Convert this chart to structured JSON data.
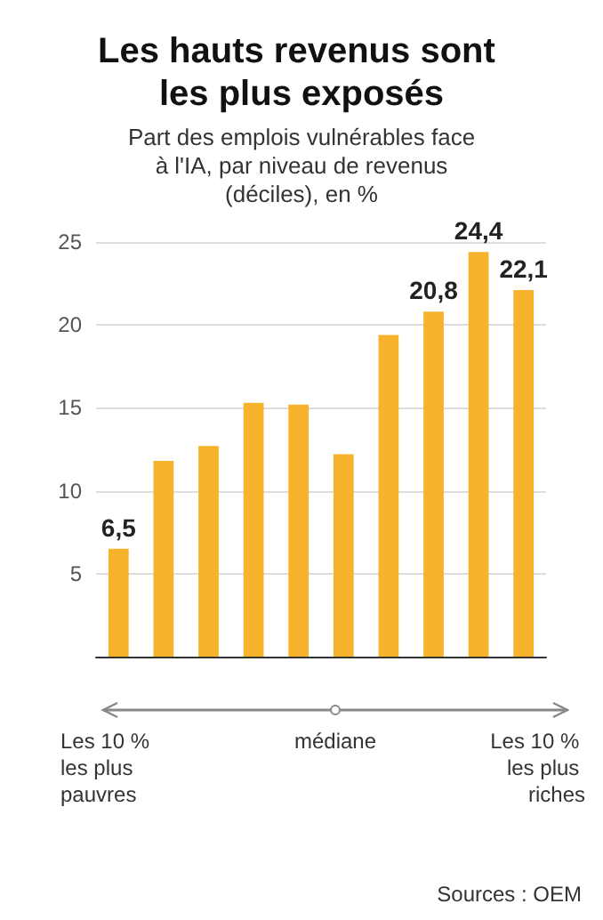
{
  "chart_data": {
    "type": "bar",
    "title": "Les hauts revenus sont les plus exposés",
    "subtitle": "Part des emplois vulnérables face à l'IA, par niveau de revenus (déciles), en %",
    "categories": [
      null,
      null,
      null,
      null,
      null,
      null,
      null,
      null,
      null,
      null
    ],
    "values": [
      6.5,
      11.8,
      12.7,
      15.3,
      15.2,
      12.2,
      19.4,
      20.8,
      24.4,
      22.1
    ],
    "value_labels": [
      "6,5",
      null,
      null,
      null,
      null,
      null,
      null,
      "20,8",
      "24,4",
      "22,1"
    ],
    "color": "#f7b32b",
    "ylim": [
      0,
      25
    ],
    "yticks": [
      5,
      10,
      15,
      20,
      25
    ],
    "grid": "y",
    "annotations": [
      "Les 10 % les plus pauvres",
      "médiane",
      "Les 10 % les plus riches",
      "Sources : OEM"
    ]
  }
}
